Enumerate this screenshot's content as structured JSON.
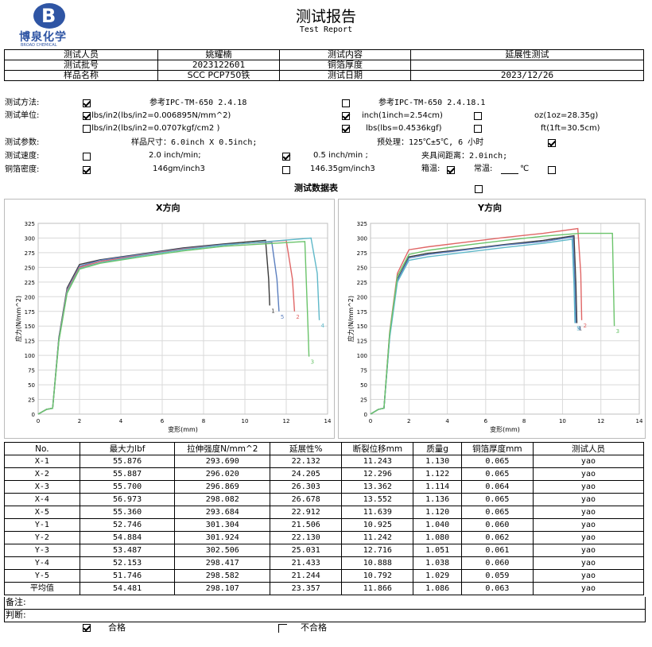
{
  "header": {
    "logo_letter": "B",
    "company_cn": "博泉化学",
    "company_en": "BROAD CHEMICAL",
    "title_cn": "测试报告",
    "title_en": "Test Report"
  },
  "info": {
    "tester_label": "测试人员",
    "tester_value": "姚耀楠",
    "content_label": "测试内容",
    "content_value": "延展性测试",
    "batch_label": "测试批号",
    "batch_value": "2023122601",
    "thickness_label": "铜箔厚度",
    "thickness_value": "",
    "sample_label": "样品名称",
    "sample_value": "SCC PCP750铁",
    "date_label": "测试日期",
    "date_value": "2023/12/26"
  },
  "params": {
    "method_label": "测试方法:",
    "method_ref1": "参考IPC-TM-650 2.4.18",
    "method_ref2": "参考IPC-TM-650 2.4.18.1",
    "unit_label": "测试单位:",
    "unit_lbs1": "lbs/in2(lbs/in2=0.006895N/mm^2)",
    "unit_inch": "inch(1inch=2.54cm)",
    "unit_oz": "oz(1oz=28.35g)",
    "unit_lbs2": "lbs/in2(lbs/in2=0.0707kgf/cm2 )",
    "unit_lbs3": "lbs(lbs=0.4536kgf)",
    "unit_ft": "ft(1ft=30.5cm)",
    "param_label": "测试参数:",
    "sample_size": "样品尺寸：6.0inch X 0.5inch;",
    "pretreat": "预处理：125℃±5℃, 6 小时",
    "speed_label": "测试速度:",
    "speed1": "2.0 inch/min;",
    "speed2": "0.5 inch/min ;",
    "clamp": "夹具间距离：2.0inch;",
    "density_label": "铜箔密度:",
    "density1": "146gm/inch3",
    "density2": "146.35gm/inch3",
    "box_label": "箱温:",
    "room_label": "常温:",
    "room_unit": "℃",
    "data_table_title": "测试数据表"
  },
  "chart_data": [
    {
      "type": "line",
      "title": "X方向",
      "xlabel": "变形(mm)",
      "ylabel": "应力(N/mm^2)",
      "xlim": [
        0,
        14
      ],
      "ylim": [
        0,
        325
      ],
      "xticks": [
        0,
        2,
        4,
        6,
        8,
        10,
        12,
        14
      ],
      "yticks": [
        0,
        25,
        50,
        75,
        100,
        125,
        150,
        175,
        200,
        225,
        250,
        275,
        300,
        325
      ],
      "grid": true,
      "series": [
        {
          "name": "1",
          "color": "#3a3a3a",
          "x": [
            0,
            0.4,
            0.7,
            1.0,
            1.4,
            2.0,
            3,
            5,
            7,
            9,
            11.0,
            11.15,
            11.2
          ],
          "y": [
            0,
            8,
            10,
            130,
            215,
            255,
            263,
            273,
            283,
            290,
            296,
            230,
            185
          ]
        },
        {
          "name": "5",
          "color": "#5b7fbf",
          "x": [
            0,
            0.4,
            0.7,
            1.0,
            1.4,
            2.0,
            3,
            5,
            7,
            9,
            11.3,
            11.55,
            11.65
          ],
          "y": [
            0,
            8,
            10,
            128,
            212,
            252,
            262,
            272,
            282,
            289,
            293,
            230,
            175
          ]
        },
        {
          "name": "2",
          "color": "#e06666",
          "x": [
            0,
            0.4,
            0.7,
            1.0,
            1.4,
            2.0,
            3,
            5,
            7,
            9,
            12.0,
            12.3,
            12.4
          ],
          "y": [
            0,
            8,
            10,
            126,
            210,
            250,
            260,
            271,
            281,
            288,
            296,
            230,
            175
          ]
        },
        {
          "name": "4",
          "color": "#5fb8c9",
          "x": [
            0,
            0.4,
            0.7,
            1.0,
            1.4,
            2.0,
            3,
            5,
            7,
            9,
            13.2,
            13.5,
            13.6
          ],
          "y": [
            0,
            8,
            10,
            125,
            208,
            248,
            258,
            270,
            280,
            288,
            300,
            240,
            160
          ]
        },
        {
          "name": "3",
          "color": "#6bc46b",
          "x": [
            0,
            0.4,
            0.7,
            1.0,
            1.4,
            2.0,
            3,
            5,
            7,
            9,
            12.9,
            13.05,
            13.1
          ],
          "y": [
            0,
            8,
            10,
            124,
            206,
            247,
            257,
            268,
            278,
            286,
            294,
            150,
            98
          ]
        }
      ]
    },
    {
      "type": "line",
      "title": "Y方向",
      "xlabel": "变形(mm)",
      "ylabel": "应力(N/mm^2)",
      "xlim": [
        0,
        14
      ],
      "ylim": [
        0,
        325
      ],
      "xticks": [
        0,
        2,
        4,
        6,
        8,
        10,
        12,
        14
      ],
      "yticks": [
        0,
        25,
        50,
        75,
        100,
        125,
        150,
        175,
        200,
        225,
        250,
        275,
        300,
        325
      ],
      "grid": true,
      "series": [
        {
          "name": "2",
          "color": "#e06666",
          "x": [
            0,
            0.4,
            0.7,
            1.0,
            1.4,
            2.0,
            3,
            5,
            7,
            9,
            10.8,
            10.95,
            11.0
          ],
          "y": [
            0,
            8,
            10,
            140,
            240,
            280,
            285,
            293,
            301,
            308,
            316,
            240,
            160
          ]
        },
        {
          "name": "1",
          "color": "#3a3a3a",
          "x": [
            0,
            0.4,
            0.7,
            1.0,
            1.4,
            2.0,
            3,
            5,
            7,
            9,
            10.6,
            10.7,
            10.75
          ],
          "y": [
            0,
            8,
            10,
            135,
            230,
            268,
            274,
            281,
            289,
            296,
            304,
            220,
            155
          ]
        },
        {
          "name": "4",
          "color": "#5b7fbf",
          "x": [
            0,
            0.4,
            0.7,
            1.0,
            1.4,
            2.0,
            3,
            5,
            7,
            9,
            10.55,
            10.65,
            10.7
          ],
          "y": [
            0,
            8,
            10,
            133,
            228,
            266,
            272,
            280,
            288,
            294,
            302,
            220,
            155
          ]
        },
        {
          "name": "5",
          "color": "#5fb8c9",
          "x": [
            0,
            0.4,
            0.7,
            1.0,
            1.4,
            2.0,
            3,
            5,
            7,
            9,
            10.5,
            10.6,
            10.65
          ],
          "y": [
            0,
            8,
            10,
            130,
            225,
            262,
            268,
            276,
            284,
            291,
            298,
            220,
            155
          ]
        },
        {
          "name": "3",
          "color": "#6bc46b",
          "x": [
            0,
            0.4,
            0.7,
            1.0,
            1.4,
            2.0,
            3,
            5,
            7,
            9,
            10.9,
            12.6,
            12.7
          ],
          "y": [
            0,
            8,
            10,
            138,
            235,
            272,
            279,
            288,
            296,
            303,
            308,
            308,
            150
          ]
        }
      ]
    }
  ],
  "results": {
    "headers": [
      "No.",
      "最大力lbf",
      "拉伸强度N/mm^2",
      "延展性%",
      "断裂位移mm",
      "质量g",
      "铜箔厚度mm",
      "测试人员"
    ],
    "rows": [
      [
        "X-1",
        "55.876",
        "293.690",
        "22.132",
        "11.243",
        "1.130",
        "0.065",
        "yao"
      ],
      [
        "X-2",
        "55.887",
        "296.020",
        "24.205",
        "12.296",
        "1.122",
        "0.065",
        "yao"
      ],
      [
        "X-3",
        "55.700",
        "296.869",
        "26.303",
        "13.362",
        "1.114",
        "0.064",
        "yao"
      ],
      [
        "X-4",
        "56.973",
        "298.082",
        "26.678",
        "13.552",
        "1.136",
        "0.065",
        "yao"
      ],
      [
        "X-5",
        "55.360",
        "293.684",
        "22.912",
        "11.639",
        "1.120",
        "0.065",
        "yao"
      ],
      [
        "Y-1",
        "52.746",
        "301.304",
        "21.506",
        "10.925",
        "1.040",
        "0.060",
        "yao"
      ],
      [
        "Y-2",
        "54.884",
        "301.924",
        "22.130",
        "11.242",
        "1.080",
        "0.062",
        "yao"
      ],
      [
        "Y-3",
        "53.487",
        "302.506",
        "25.031",
        "12.716",
        "1.051",
        "0.061",
        "yao"
      ],
      [
        "Y-4",
        "52.153",
        "298.417",
        "21.433",
        "10.888",
        "1.038",
        "0.060",
        "yao"
      ],
      [
        "Y-5",
        "51.746",
        "298.582",
        "21.244",
        "10.792",
        "1.029",
        "0.059",
        "yao"
      ],
      [
        "平均值",
        "54.481",
        "298.107",
        "23.357",
        "11.866",
        "1.086",
        "0.063",
        "yao"
      ]
    ]
  },
  "footer": {
    "remark_label": "备注:",
    "judge_label": "判断:",
    "pass_label": "合格",
    "fail_label": "不合格"
  }
}
